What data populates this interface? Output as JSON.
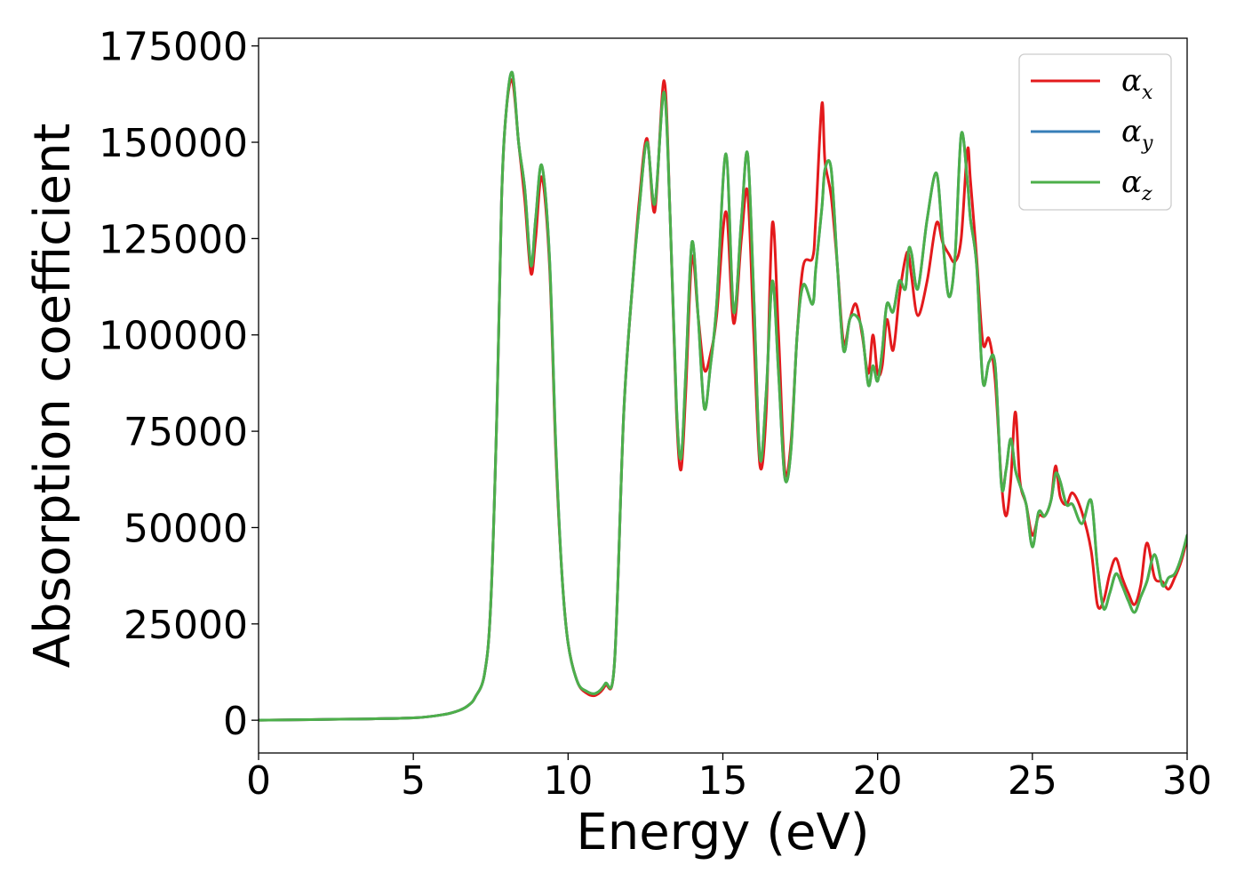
{
  "chart_data": {
    "type": "line",
    "title": "",
    "xlabel": "Energy (eV)",
    "ylabel": "Absorption coefficient",
    "xlim": [
      0,
      30
    ],
    "ylim": [
      -8500,
      177000
    ],
    "xticks": [
      0,
      5,
      10,
      15,
      20,
      25,
      30
    ],
    "yticks": [
      0,
      25000,
      50000,
      75000,
      100000,
      125000,
      150000,
      175000
    ],
    "grid": false,
    "legend_position": "top-right",
    "series": [
      {
        "name": "α_x",
        "legend_base": "α",
        "legend_sub": "x",
        "color": "#e31a1c",
        "x": [
          0,
          3,
          5,
          6,
          6.5,
          6.8,
          7.0,
          7.3,
          7.5,
          7.7,
          7.85,
          8.0,
          8.2,
          8.4,
          8.6,
          8.8,
          8.95,
          9.15,
          9.4,
          9.6,
          9.8,
          10.0,
          10.3,
          10.6,
          10.9,
          11.2,
          11.5,
          11.8,
          12.1,
          12.3,
          12.55,
          12.8,
          13.1,
          13.3,
          13.5,
          13.65,
          13.8,
          14.0,
          14.2,
          14.4,
          14.6,
          14.8,
          15.1,
          15.35,
          15.6,
          15.8,
          16.0,
          16.2,
          16.4,
          16.6,
          16.8,
          17.0,
          17.2,
          17.4,
          17.6,
          17.9,
          18.0,
          18.2,
          18.3,
          18.5,
          18.7,
          18.9,
          19.1,
          19.3,
          19.5,
          19.7,
          19.85,
          20.0,
          20.15,
          20.3,
          20.5,
          20.7,
          20.9,
          21.0,
          21.1,
          21.3,
          21.6,
          21.9,
          22.1,
          22.3,
          22.5,
          22.7,
          22.9,
          23.0,
          23.2,
          23.4,
          23.6,
          23.8,
          24.0,
          24.15,
          24.3,
          24.45,
          24.6,
          24.8,
          25.0,
          25.2,
          25.4,
          25.6,
          25.75,
          25.9,
          26.1,
          26.3,
          26.6,
          26.9,
          27.1,
          27.3,
          27.5,
          27.7,
          27.9,
          28.1,
          28.3,
          28.5,
          28.7,
          28.95,
          29.2,
          29.4,
          29.6,
          29.8,
          30.0
        ],
        "y": [
          0,
          300,
          600,
          1500,
          2600,
          4000,
          6000,
          12000,
          30000,
          80000,
          135000,
          158000,
          166000,
          150000,
          135000,
          116000,
          125000,
          141000,
          118000,
          70000,
          38000,
          20000,
          10000,
          7000,
          6500,
          9000,
          15000,
          80000,
          115000,
          135000,
          151000,
          132000,
          166000,
          130000,
          80000,
          65000,
          85000,
          120000,
          105000,
          91000,
          95000,
          105000,
          132000,
          103000,
          125000,
          137000,
          100000,
          66000,
          80000,
          129000,
          100000,
          65000,
          72000,
          100000,
          118000,
          120000,
          130000,
          160000,
          145000,
          136000,
          118000,
          98000,
          104000,
          108000,
          100000,
          90000,
          100000,
          90000,
          92000,
          104000,
          96000,
          110000,
          120000,
          121000,
          115000,
          105000,
          114000,
          129000,
          124000,
          121000,
          119000,
          125000,
          148000,
          140000,
          120000,
          98000,
          99000,
          88000,
          62000,
          53000,
          62000,
          80000,
          62000,
          56000,
          48000,
          53000,
          53000,
          57000,
          66000,
          58000,
          56000,
          59000,
          54000,
          44000,
          30000,
          31000,
          38000,
          42000,
          37000,
          33000,
          30000,
          35000,
          46000,
          37000,
          36000,
          34000,
          37000,
          41000,
          47000
        ]
      },
      {
        "name": "α_y",
        "legend_base": "α",
        "legend_sub": "y",
        "color": "#377eb8",
        "x": [
          0,
          3,
          5,
          6,
          6.5,
          6.8,
          7.0,
          7.3,
          7.5,
          7.7,
          7.85,
          8.0,
          8.2,
          8.4,
          8.6,
          8.8,
          8.95,
          9.15,
          9.4,
          9.6,
          9.8,
          10.0,
          10.3,
          10.6,
          10.9,
          11.2,
          11.5,
          11.8,
          12.1,
          12.3,
          12.55,
          12.8,
          13.1,
          13.3,
          13.5,
          13.65,
          13.8,
          14.0,
          14.2,
          14.4,
          14.6,
          14.8,
          15.1,
          15.35,
          15.6,
          15.8,
          16.0,
          16.2,
          16.4,
          16.6,
          16.8,
          17.0,
          17.2,
          17.4,
          17.6,
          17.9,
          18.0,
          18.2,
          18.3,
          18.5,
          18.7,
          18.9,
          19.1,
          19.3,
          19.5,
          19.7,
          19.85,
          20.0,
          20.15,
          20.3,
          20.5,
          20.7,
          20.9,
          21.0,
          21.1,
          21.3,
          21.6,
          21.9,
          22.1,
          22.3,
          22.5,
          22.7,
          22.9,
          23.0,
          23.2,
          23.4,
          23.6,
          23.8,
          24.0,
          24.15,
          24.3,
          24.45,
          24.6,
          24.8,
          25.0,
          25.2,
          25.4,
          25.6,
          25.75,
          25.9,
          26.1,
          26.3,
          26.6,
          26.9,
          27.1,
          27.3,
          27.5,
          27.7,
          27.9,
          28.1,
          28.3,
          28.5,
          28.7,
          28.95,
          29.2,
          29.4,
          29.6,
          29.8,
          30.0
        ],
        "y": [
          0,
          300,
          600,
          1500,
          2600,
          4000,
          6000,
          12000,
          30000,
          80000,
          135000,
          158000,
          168000,
          150000,
          138000,
          118000,
          130000,
          144000,
          120000,
          72000,
          38000,
          20000,
          10000,
          7500,
          7000,
          9500,
          15000,
          80000,
          115000,
          133000,
          150000,
          134000,
          163000,
          130000,
          82000,
          68000,
          90000,
          124000,
          105000,
          81000,
          92000,
          108000,
          147000,
          106000,
          130000,
          147000,
          110000,
          68000,
          85000,
          114000,
          90000,
          63000,
          70000,
          100000,
          113000,
          108000,
          117000,
          133000,
          143000,
          143000,
          118000,
          96000,
          104000,
          105000,
          101000,
          87000,
          92000,
          88000,
          96000,
          108000,
          106000,
          114000,
          112000,
          122000,
          121000,
          112000,
          130000,
          142000,
          125000,
          110000,
          120000,
          152000,
          140000,
          130000,
          118000,
          88000,
          93000,
          92000,
          61000,
          65000,
          73000,
          65000,
          61000,
          56000,
          45000,
          54000,
          53000,
          57000,
          64000,
          62000,
          56000,
          56000,
          51000,
          57000,
          40000,
          29000,
          33000,
          38000,
          35000,
          31000,
          28000,
          32000,
          36000,
          43000,
          35000,
          37000,
          38000,
          42000,
          48000
        ]
      },
      {
        "name": "α_z",
        "legend_base": "α",
        "legend_sub": "z",
        "color": "#4daf4a",
        "x": [
          0,
          3,
          5,
          6,
          6.5,
          6.8,
          7.0,
          7.3,
          7.5,
          7.7,
          7.85,
          8.0,
          8.2,
          8.4,
          8.6,
          8.8,
          8.95,
          9.15,
          9.4,
          9.6,
          9.8,
          10.0,
          10.3,
          10.6,
          10.9,
          11.2,
          11.5,
          11.8,
          12.1,
          12.3,
          12.55,
          12.8,
          13.1,
          13.3,
          13.5,
          13.65,
          13.8,
          14.0,
          14.2,
          14.4,
          14.6,
          14.8,
          15.1,
          15.35,
          15.6,
          15.8,
          16.0,
          16.2,
          16.4,
          16.6,
          16.8,
          17.0,
          17.2,
          17.4,
          17.6,
          17.9,
          18.0,
          18.2,
          18.3,
          18.5,
          18.7,
          18.9,
          19.1,
          19.3,
          19.5,
          19.7,
          19.85,
          20.0,
          20.15,
          20.3,
          20.5,
          20.7,
          20.9,
          21.0,
          21.1,
          21.3,
          21.6,
          21.9,
          22.1,
          22.3,
          22.5,
          22.7,
          22.9,
          23.0,
          23.2,
          23.4,
          23.6,
          23.8,
          24.0,
          24.15,
          24.3,
          24.45,
          24.6,
          24.8,
          25.0,
          25.2,
          25.4,
          25.6,
          25.75,
          25.9,
          26.1,
          26.3,
          26.6,
          26.9,
          27.1,
          27.3,
          27.5,
          27.7,
          27.9,
          28.1,
          28.3,
          28.5,
          28.7,
          28.95,
          29.2,
          29.4,
          29.6,
          29.8,
          30.0
        ],
        "y": [
          0,
          300,
          600,
          1500,
          2600,
          4000,
          6000,
          12000,
          30000,
          80000,
          135000,
          158000,
          168000,
          150000,
          138000,
          118000,
          130000,
          144000,
          120000,
          72000,
          38000,
          20000,
          10000,
          7500,
          7000,
          9500,
          15000,
          80000,
          115000,
          133000,
          150000,
          134000,
          163000,
          130000,
          82000,
          68000,
          90000,
          124000,
          105000,
          81000,
          92000,
          108000,
          147000,
          106000,
          130000,
          147000,
          110000,
          68000,
          85000,
          114000,
          90000,
          63000,
          70000,
          100000,
          113000,
          108000,
          117000,
          133000,
          143000,
          143000,
          118000,
          96000,
          104000,
          105000,
          101000,
          87000,
          92000,
          88000,
          96000,
          108000,
          106000,
          114000,
          112000,
          122000,
          121000,
          112000,
          130000,
          142000,
          125000,
          110000,
          120000,
          152000,
          140000,
          130000,
          118000,
          88000,
          93000,
          92000,
          61000,
          65000,
          73000,
          65000,
          61000,
          56000,
          45000,
          54000,
          53000,
          57000,
          64000,
          62000,
          56000,
          56000,
          51000,
          57000,
          40000,
          29000,
          33000,
          38000,
          35000,
          31000,
          28000,
          32000,
          36000,
          43000,
          35000,
          37000,
          38000,
          42000,
          48000
        ]
      }
    ]
  }
}
